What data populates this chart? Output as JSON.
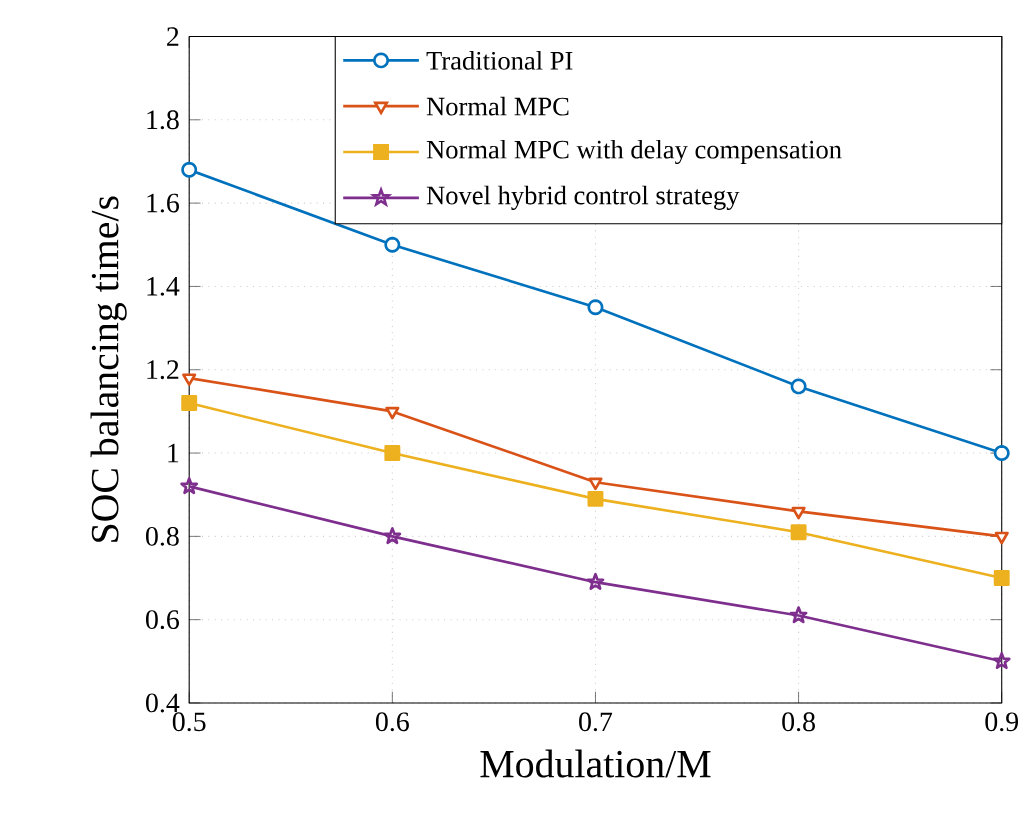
{
  "chart_data": {
    "type": "line",
    "xlabel": "Modulation/M",
    "ylabel": "SOC balancing time/s",
    "x": [
      0.5,
      0.6,
      0.7,
      0.8,
      0.9
    ],
    "xlim": [
      0.5,
      0.9
    ],
    "xticks": [
      0.5,
      0.6,
      0.7,
      0.8,
      0.9
    ],
    "ylim": [
      0.4,
      2
    ],
    "yticks": [
      0.4,
      0.6,
      0.8,
      1,
      1.2,
      1.4,
      1.6,
      1.8,
      2
    ],
    "grid": true,
    "legend": "top right",
    "line_style": "solid",
    "series": [
      {
        "name": "Traditional PI",
        "color": "#0072bd",
        "marker": "circle",
        "values": [
          1.68,
          1.5,
          1.35,
          1.16,
          1.0
        ]
      },
      {
        "name": "Normal MPC",
        "color": "#d95319",
        "marker": "triangle",
        "values": [
          1.18,
          1.1,
          0.93,
          0.86,
          0.8
        ]
      },
      {
        "name": "Normal MPC with delay compensation",
        "color": "#edb120",
        "marker": "square",
        "values": [
          1.12,
          1.0,
          0.89,
          0.81,
          0.7
        ]
      },
      {
        "name": "Novel hybrid control strategy",
        "color": "#7e2f8e",
        "marker": "star",
        "values": [
          0.92,
          0.8,
          0.69,
          0.61,
          0.5
        ]
      }
    ]
  }
}
